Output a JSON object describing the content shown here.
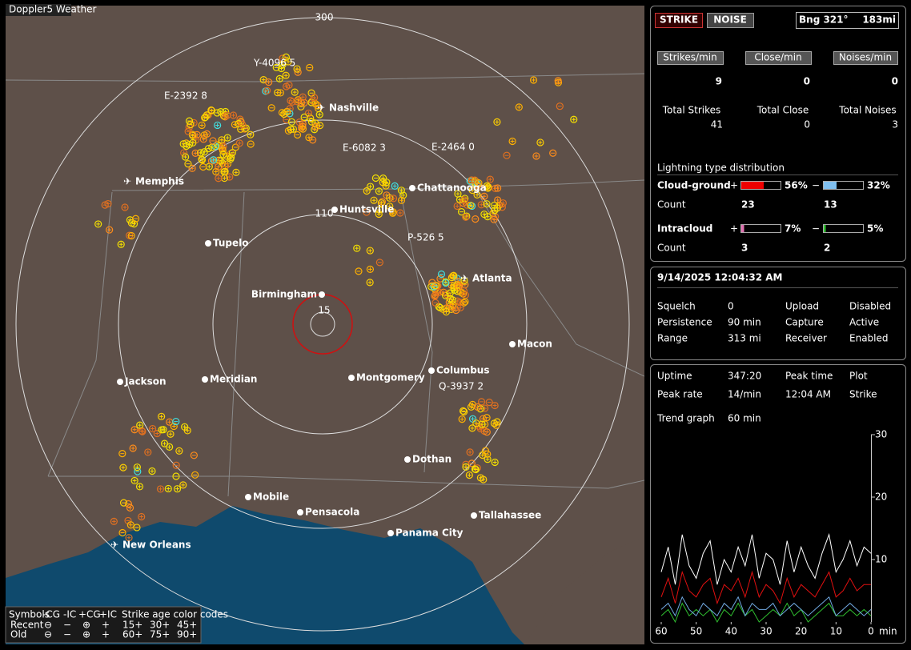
{
  "window_title": "Doppler5 Weather",
  "map": {
    "range_rings": [
      300,
      110,
      15
    ],
    "cities": [
      "Nashville",
      "Memphis",
      "Chattanooga",
      "Huntsville",
      "Tupelo",
      "Birmingham",
      "Atlanta",
      "Macon",
      "Jackson",
      "Meridian",
      "Montgomery",
      "Columbus",
      "Dothan",
      "Mobile",
      "Pensacola",
      "Tallahassee",
      "Panama City",
      "New Orleans"
    ],
    "storms": [
      "Y-4096 5",
      "E-2392 8",
      "E-6082 3",
      "E-2464 0",
      "P-526 5",
      "Q-3937 2"
    ],
    "legend": {
      "headers": [
        "Symbols",
        "-CG",
        "-IC",
        "+CG",
        "+IC",
        "Strike age color codes"
      ],
      "rows": [
        {
          "label": "Recent",
          "ages": [
            "15+",
            "30+",
            "45+"
          ]
        },
        {
          "label": "Old",
          "ages": [
            "60+",
            "75+",
            "90+"
          ]
        }
      ]
    }
  },
  "status": {
    "strike": "STRIKE",
    "noise": "NOISE",
    "bearing": "Bng 321°",
    "distance": "183mi"
  },
  "counters": {
    "labels": [
      "Strikes/min",
      "Close/min",
      "Noises/min"
    ],
    "values": [
      9,
      0,
      0
    ],
    "total_labels": [
      "Total Strikes",
      "Total Close",
      "Total Noises"
    ],
    "totals": [
      41,
      0,
      3
    ]
  },
  "distribution": {
    "title": "Lightning type distribution",
    "count_label": "Count",
    "plus": "+",
    "minus": "−",
    "rows": [
      {
        "name": "Cloud-ground",
        "positive": {
          "value": 56,
          "label": "56%"
        },
        "negative": {
          "value": 32,
          "label": "32%"
        },
        "counts": [
          23,
          13
        ]
      },
      {
        "name": "Intracloud",
        "positive": {
          "value": 7,
          "label": "7%"
        },
        "negative": {
          "value": 5,
          "label": "5%"
        },
        "counts": [
          3,
          2
        ]
      }
    ]
  },
  "clock": "9/14/2025 12:04:32 AM",
  "settings": {
    "rows": [
      [
        "Squelch",
        0,
        "Upload",
        "Disabled"
      ],
      [
        "Persistence",
        "90 min",
        "Capture",
        "Active"
      ],
      [
        "Range",
        "313 mi",
        "Receiver",
        "Enabled"
      ]
    ]
  },
  "stats": {
    "rows": [
      [
        "Uptime",
        "347:20",
        "Peak time",
        "Plot"
      ],
      [
        "Peak rate",
        "14/min",
        "12:04 AM",
        "Strike"
      ],
      [
        "Trend graph",
        "60 min"
      ]
    ]
  },
  "trend_graph": {
    "xlim": [
      60,
      0
    ],
    "ylim": [
      0,
      30
    ],
    "xticks": [
      60,
      50,
      40,
      30,
      20,
      10,
      0
    ],
    "yticks": [
      30,
      20,
      10
    ],
    "xlabel": "min",
    "x": [
      60,
      58,
      56,
      54,
      52,
      50,
      48,
      46,
      44,
      42,
      40,
      38,
      36,
      34,
      32,
      30,
      28,
      26,
      24,
      22,
      20,
      18,
      16,
      14,
      12,
      10,
      8,
      6,
      4,
      2,
      0
    ],
    "series": [
      {
        "color": "#ffffff",
        "values": [
          8,
          12,
          6,
          14,
          9,
          7,
          11,
          13,
          6,
          10,
          8,
          12,
          9,
          14,
          7,
          11,
          10,
          6,
          13,
          8,
          12,
          9,
          7,
          11,
          14,
          8,
          10,
          13,
          9,
          12,
          11
        ]
      },
      {
        "color": "#e01010",
        "values": [
          4,
          7,
          3,
          8,
          5,
          4,
          6,
          7,
          3,
          6,
          5,
          7,
          4,
          8,
          4,
          6,
          5,
          3,
          7,
          4,
          6,
          5,
          4,
          6,
          8,
          4,
          5,
          7,
          5,
          6,
          6
        ]
      },
      {
        "color": "#70a8e0",
        "values": [
          2,
          3,
          1,
          4,
          2,
          1,
          3,
          2,
          1,
          3,
          2,
          4,
          1,
          3,
          2,
          2,
          3,
          1,
          2,
          3,
          2,
          1,
          2,
          3,
          4,
          1,
          2,
          3,
          2,
          1,
          2
        ]
      },
      {
        "color": "#30c030",
        "values": [
          1,
          2,
          0,
          3,
          1,
          2,
          1,
          2,
          0,
          2,
          1,
          3,
          1,
          2,
          0,
          1,
          2,
          1,
          3,
          1,
          2,
          0,
          1,
          2,
          3,
          1,
          1,
          2,
          1,
          2,
          1
        ]
      }
    ]
  }
}
